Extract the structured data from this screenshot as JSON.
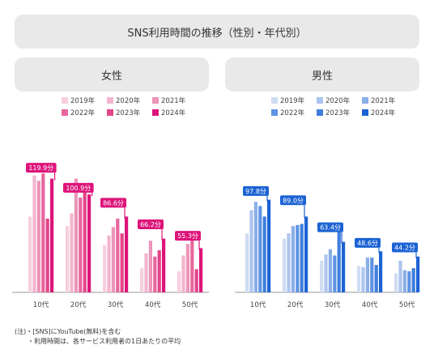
{
  "title": "SNS利用時間の推移（性別・年代別）",
  "notes": [
    "(注)・[SNS]にYouTube(無料)を含む",
    "　　・利用時間は、各サービス利用者の1日あたりの平均"
  ],
  "chart_data": [
    {
      "type": "bar",
      "title": "女性",
      "categories": [
        "10代",
        "20代",
        "30代",
        "40代",
        "50代"
      ],
      "ylim": [
        0,
        140
      ],
      "colors": [
        "#f6cfdf",
        "#f2b5cd",
        "#ec95b8",
        "#e8669e",
        "#e4448a",
        "#dd147a"
      ],
      "series": [
        {
          "name": "2019年",
          "values": [
            72,
            63,
            45,
            23,
            20
          ]
        },
        {
          "name": "2020年",
          "values": [
            111,
            75,
            54,
            37,
            35
          ]
        },
        {
          "name": "2021年",
          "values": [
            106,
            108,
            62,
            49,
            46
          ]
        },
        {
          "name": "2022年",
          "values": [
            113,
            90,
            70,
            34,
            54
          ]
        },
        {
          "name": "2023年",
          "values": [
            70,
            95,
            56,
            40,
            22
          ]
        },
        {
          "name": "2024年",
          "values": [
            108,
            93,
            72,
            51,
            42
          ]
        }
      ],
      "callouts": [
        {
          "text": "119.9分",
          "value": 119.9
        },
        {
          "text": "100.9分",
          "value": 100.9
        },
        {
          "text": "86.6分",
          "value": 86.6
        },
        {
          "text": "66.2分",
          "value": 66.2
        },
        {
          "text": "55.3分",
          "value": 55.3
        }
      ]
    },
    {
      "type": "bar",
      "title": "男性",
      "categories": [
        "10代",
        "20代",
        "30代",
        "40代",
        "50代"
      ],
      "ylim": [
        0,
        140
      ],
      "colors": [
        "#cfdcf2",
        "#adc4ee",
        "#8aaee8",
        "#5f93e4",
        "#3f7edd",
        "#1c63d4"
      ],
      "series": [
        {
          "name": "2019年",
          "values": [
            56,
            51,
            30,
            25,
            18
          ]
        },
        {
          "name": "2020年",
          "values": [
            78,
            56,
            36,
            24,
            30
          ]
        },
        {
          "name": "2021年",
          "values": [
            86,
            63,
            41,
            33,
            21
          ]
        },
        {
          "name": "2022年",
          "values": [
            82,
            64,
            35,
            33,
            20
          ]
        },
        {
          "name": "2023年",
          "values": [
            72,
            65,
            62,
            26,
            23
          ]
        },
        {
          "name": "2024年",
          "values": [
            88,
            72,
            48,
            39,
            34
          ]
        }
      ],
      "callouts": [
        {
          "text": "97.8分",
          "value": 97.8
        },
        {
          "text": "89.0分",
          "value": 89.0
        },
        {
          "text": "63.4分",
          "value": 63.4
        },
        {
          "text": "48.6分",
          "value": 48.6
        },
        {
          "text": "44.2分",
          "value": 44.2
        }
      ]
    }
  ]
}
